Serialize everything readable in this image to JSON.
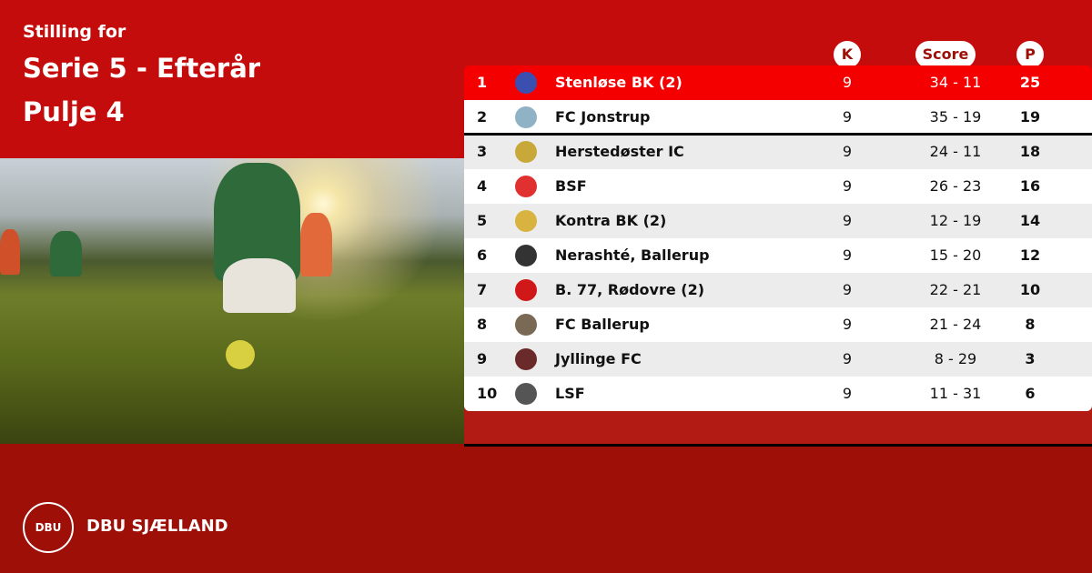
{
  "header": {
    "subtitle": "Stilling for",
    "league": "Serie 5 - Efterår",
    "pool": "Pulje 4"
  },
  "columns": {
    "k": "K",
    "score": "Score",
    "p": "P"
  },
  "rows": [
    {
      "pos": "1",
      "team": "Stenløse BK (2)",
      "k": "9",
      "score": "34 - 11",
      "p": "25",
      "logo_color": "#3b4fb0"
    },
    {
      "pos": "2",
      "team": "FC Jonstrup",
      "k": "9",
      "score": "35 - 19",
      "p": "19",
      "logo_color": "#8fb3c4"
    },
    {
      "pos": "3",
      "team": "Herstedøster IC",
      "k": "9",
      "score": "24 - 11",
      "p": "18",
      "logo_color": "#c9a83a"
    },
    {
      "pos": "4",
      "team": "BSF",
      "k": "9",
      "score": "26 - 23",
      "p": "16",
      "logo_color": "#e03030"
    },
    {
      "pos": "5",
      "team": "Kontra BK (2)",
      "k": "9",
      "score": "12 - 19",
      "p": "14",
      "logo_color": "#d8b340"
    },
    {
      "pos": "6",
      "team": "Nerashté, Ballerup",
      "k": "9",
      "score": "15 - 20",
      "p": "12",
      "logo_color": "#333333"
    },
    {
      "pos": "7",
      "team": "B. 77, Rødovre (2)",
      "k": "9",
      "score": "22 - 21",
      "p": "10",
      "logo_color": "#d01818"
    },
    {
      "pos": "8",
      "team": "FC Ballerup",
      "k": "9",
      "score": "21 - 24",
      "p": "8",
      "logo_color": "#7a6a55"
    },
    {
      "pos": "9",
      "team": "Jyllinge FC",
      "k": "9",
      "score": "8 - 29",
      "p": "3",
      "logo_color": "#6a2a2a"
    },
    {
      "pos": "10",
      "team": "LSF",
      "k": "9",
      "score": "11 - 31",
      "p": "6",
      "logo_color": "#555555"
    }
  ],
  "footer": {
    "brand": "DBU SJÆLLAND",
    "logo_text": "DBU"
  },
  "colors": {
    "top": "#c50c0c",
    "bottom": "#9d0f07",
    "leader_row": "#f40000"
  }
}
